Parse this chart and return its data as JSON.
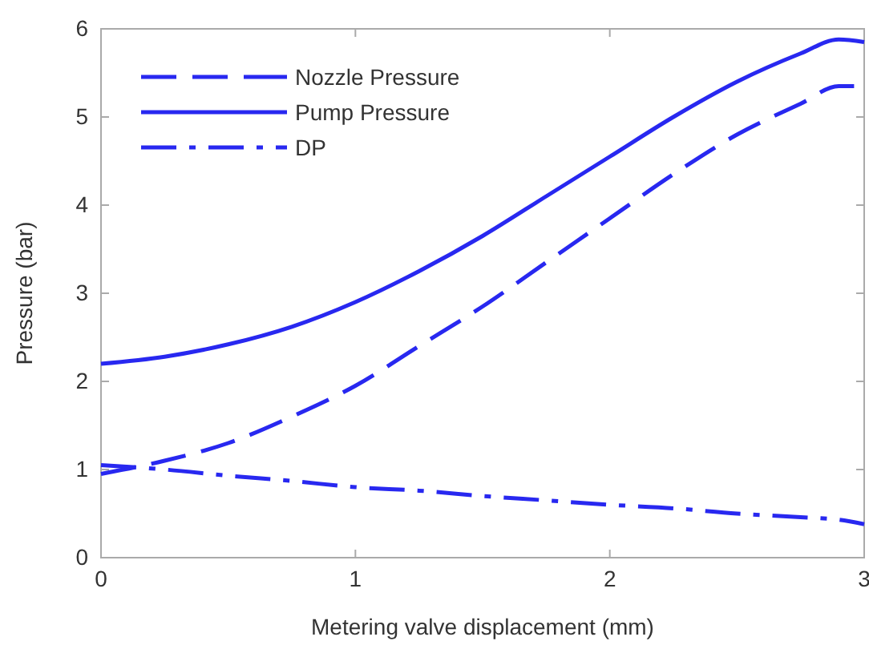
{
  "chart_data": {
    "type": "line",
    "xlabel": "Metering valve displacement (mm)",
    "ylabel": "Pressure (bar)",
    "xlim": [
      0,
      3
    ],
    "ylim": [
      0,
      6
    ],
    "xticks": [
      0,
      1,
      2,
      3
    ],
    "yticks": [
      0,
      1,
      2,
      3,
      4,
      5,
      6
    ],
    "grid": false,
    "legend": "top left",
    "marker": "none",
    "series": [
      {
        "name": "Nozzle Pressure",
        "color": "#2828f0",
        "line_style": "dashed",
        "x": [
          0,
          0.25,
          0.5,
          0.75,
          1,
          1.25,
          1.5,
          1.75,
          2,
          2.25,
          2.5,
          2.75,
          2.9,
          3
        ],
        "values": [
          0.95,
          1.1,
          1.3,
          1.6,
          1.95,
          2.4,
          2.85,
          3.35,
          3.85,
          4.35,
          4.8,
          5.15,
          5.35,
          5.35
        ]
      },
      {
        "name": "Pump Pressure",
        "color": "#2828f0",
        "line_style": "solid",
        "x": [
          0,
          0.25,
          0.5,
          0.75,
          1,
          1.25,
          1.5,
          1.75,
          2,
          2.25,
          2.5,
          2.75,
          2.9,
          3
        ],
        "values": [
          2.2,
          2.28,
          2.42,
          2.62,
          2.9,
          3.25,
          3.65,
          4.1,
          4.55,
          5.0,
          5.4,
          5.72,
          5.88,
          5.85
        ]
      },
      {
        "name": "DP",
        "color": "#2828f0",
        "line_style": "dashdot",
        "x": [
          0,
          0.25,
          0.5,
          0.75,
          1,
          1.25,
          1.5,
          1.75,
          2,
          2.25,
          2.5,
          2.75,
          2.9,
          3
        ],
        "values": [
          1.05,
          1.0,
          0.93,
          0.87,
          0.8,
          0.76,
          0.7,
          0.65,
          0.6,
          0.56,
          0.5,
          0.46,
          0.43,
          0.38
        ]
      }
    ]
  }
}
